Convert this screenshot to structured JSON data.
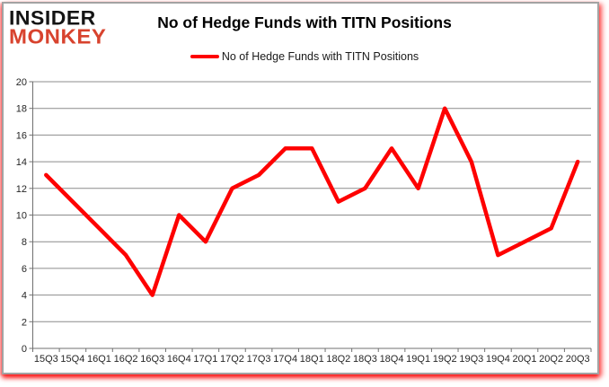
{
  "branding": {
    "line1": "INSIDER",
    "line2": "MONKEY",
    "line1_color": "#141414",
    "line2_color": "#d8432e"
  },
  "header": {
    "title": "No of Hedge Funds with TITN Positions"
  },
  "legend": {
    "label": "No of Hedge Funds with TITN Positions",
    "marker_color": "#fe0000"
  },
  "chart_data": {
    "type": "line",
    "title": "No of Hedge Funds with TITN Positions",
    "categories": [
      "15Q3",
      "15Q4",
      "16Q1",
      "16Q2",
      "16Q3",
      "16Q4",
      "17Q1",
      "17Q2",
      "17Q3",
      "17Q4",
      "18Q1",
      "18Q2",
      "18Q3",
      "18Q4",
      "19Q1",
      "19Q2",
      "19Q3",
      "19Q4",
      "20Q1",
      "20Q2",
      "20Q3"
    ],
    "series": [
      {
        "name": "No of Hedge Funds with TITN Positions",
        "color": "#fe0000",
        "values": [
          13,
          11,
          9,
          7,
          4,
          10,
          8,
          12,
          13,
          15,
          15,
          11,
          12,
          15,
          12,
          18,
          14,
          7,
          8,
          9,
          14
        ]
      }
    ],
    "ylim": [
      0,
      20
    ],
    "ytick_step": 2,
    "grid": "horizontal",
    "gridline_color": "#8c8c8c",
    "axis_color": "#707070",
    "tick_label_color": "#262626",
    "legend_position": "top-center",
    "xlabel": "",
    "ylabel": ""
  }
}
